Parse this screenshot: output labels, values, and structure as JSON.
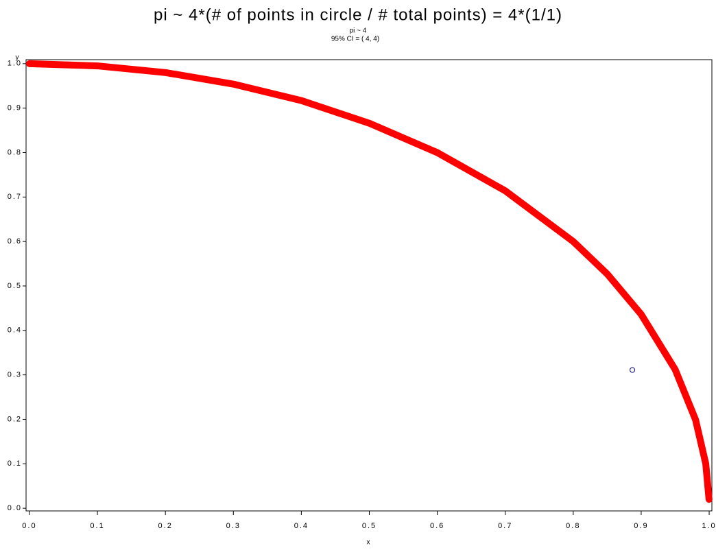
{
  "chart_data": {
    "type": "scatter",
    "title": "pi ~ 4*(# of points in circle / # total points) = 4*(1/1)",
    "subtitle": [
      "pi ~ 4",
      "95% CI = ( 4, 4)"
    ],
    "x_label": "x",
    "y_label": "y",
    "xlim": [
      -0.005,
      1.004
    ],
    "ylim": [
      -0.006,
      1.009
    ],
    "xticks": [
      {
        "value": 0,
        "label": "0.0"
      },
      0.1,
      0.2,
      0.3,
      0.4,
      0.5,
      0.6,
      0.7,
      0.8,
      0.9,
      {
        "value": 1,
        "label": "1.0"
      }
    ],
    "yticks": [
      {
        "value": 0,
        "label": "0.0"
      },
      0.1,
      0.2,
      0.3,
      0.4,
      0.5,
      0.6,
      0.7,
      0.8,
      0.9,
      {
        "value": 1,
        "label": "1.0"
      }
    ],
    "series": [
      {
        "style": "line",
        "color": "#ff0000",
        "x": [
          0,
          0.1,
          0.2,
          0.3,
          0.4,
          0.5,
          0.6,
          0.7,
          0.8,
          0.85,
          0.9,
          0.95,
          0.98,
          0.995,
          0.9998
        ],
        "values": [
          1,
          0.995,
          0.98,
          0.954,
          0.917,
          0.866,
          0.8,
          0.714,
          0.6,
          0.527,
          0.436,
          0.312,
          0.199,
          0.1,
          0.02
        ]
      },
      {
        "style": "marker",
        "color": "#000080",
        "x": [
          0.887
        ],
        "values": [
          0.311
        ]
      }
    ]
  }
}
